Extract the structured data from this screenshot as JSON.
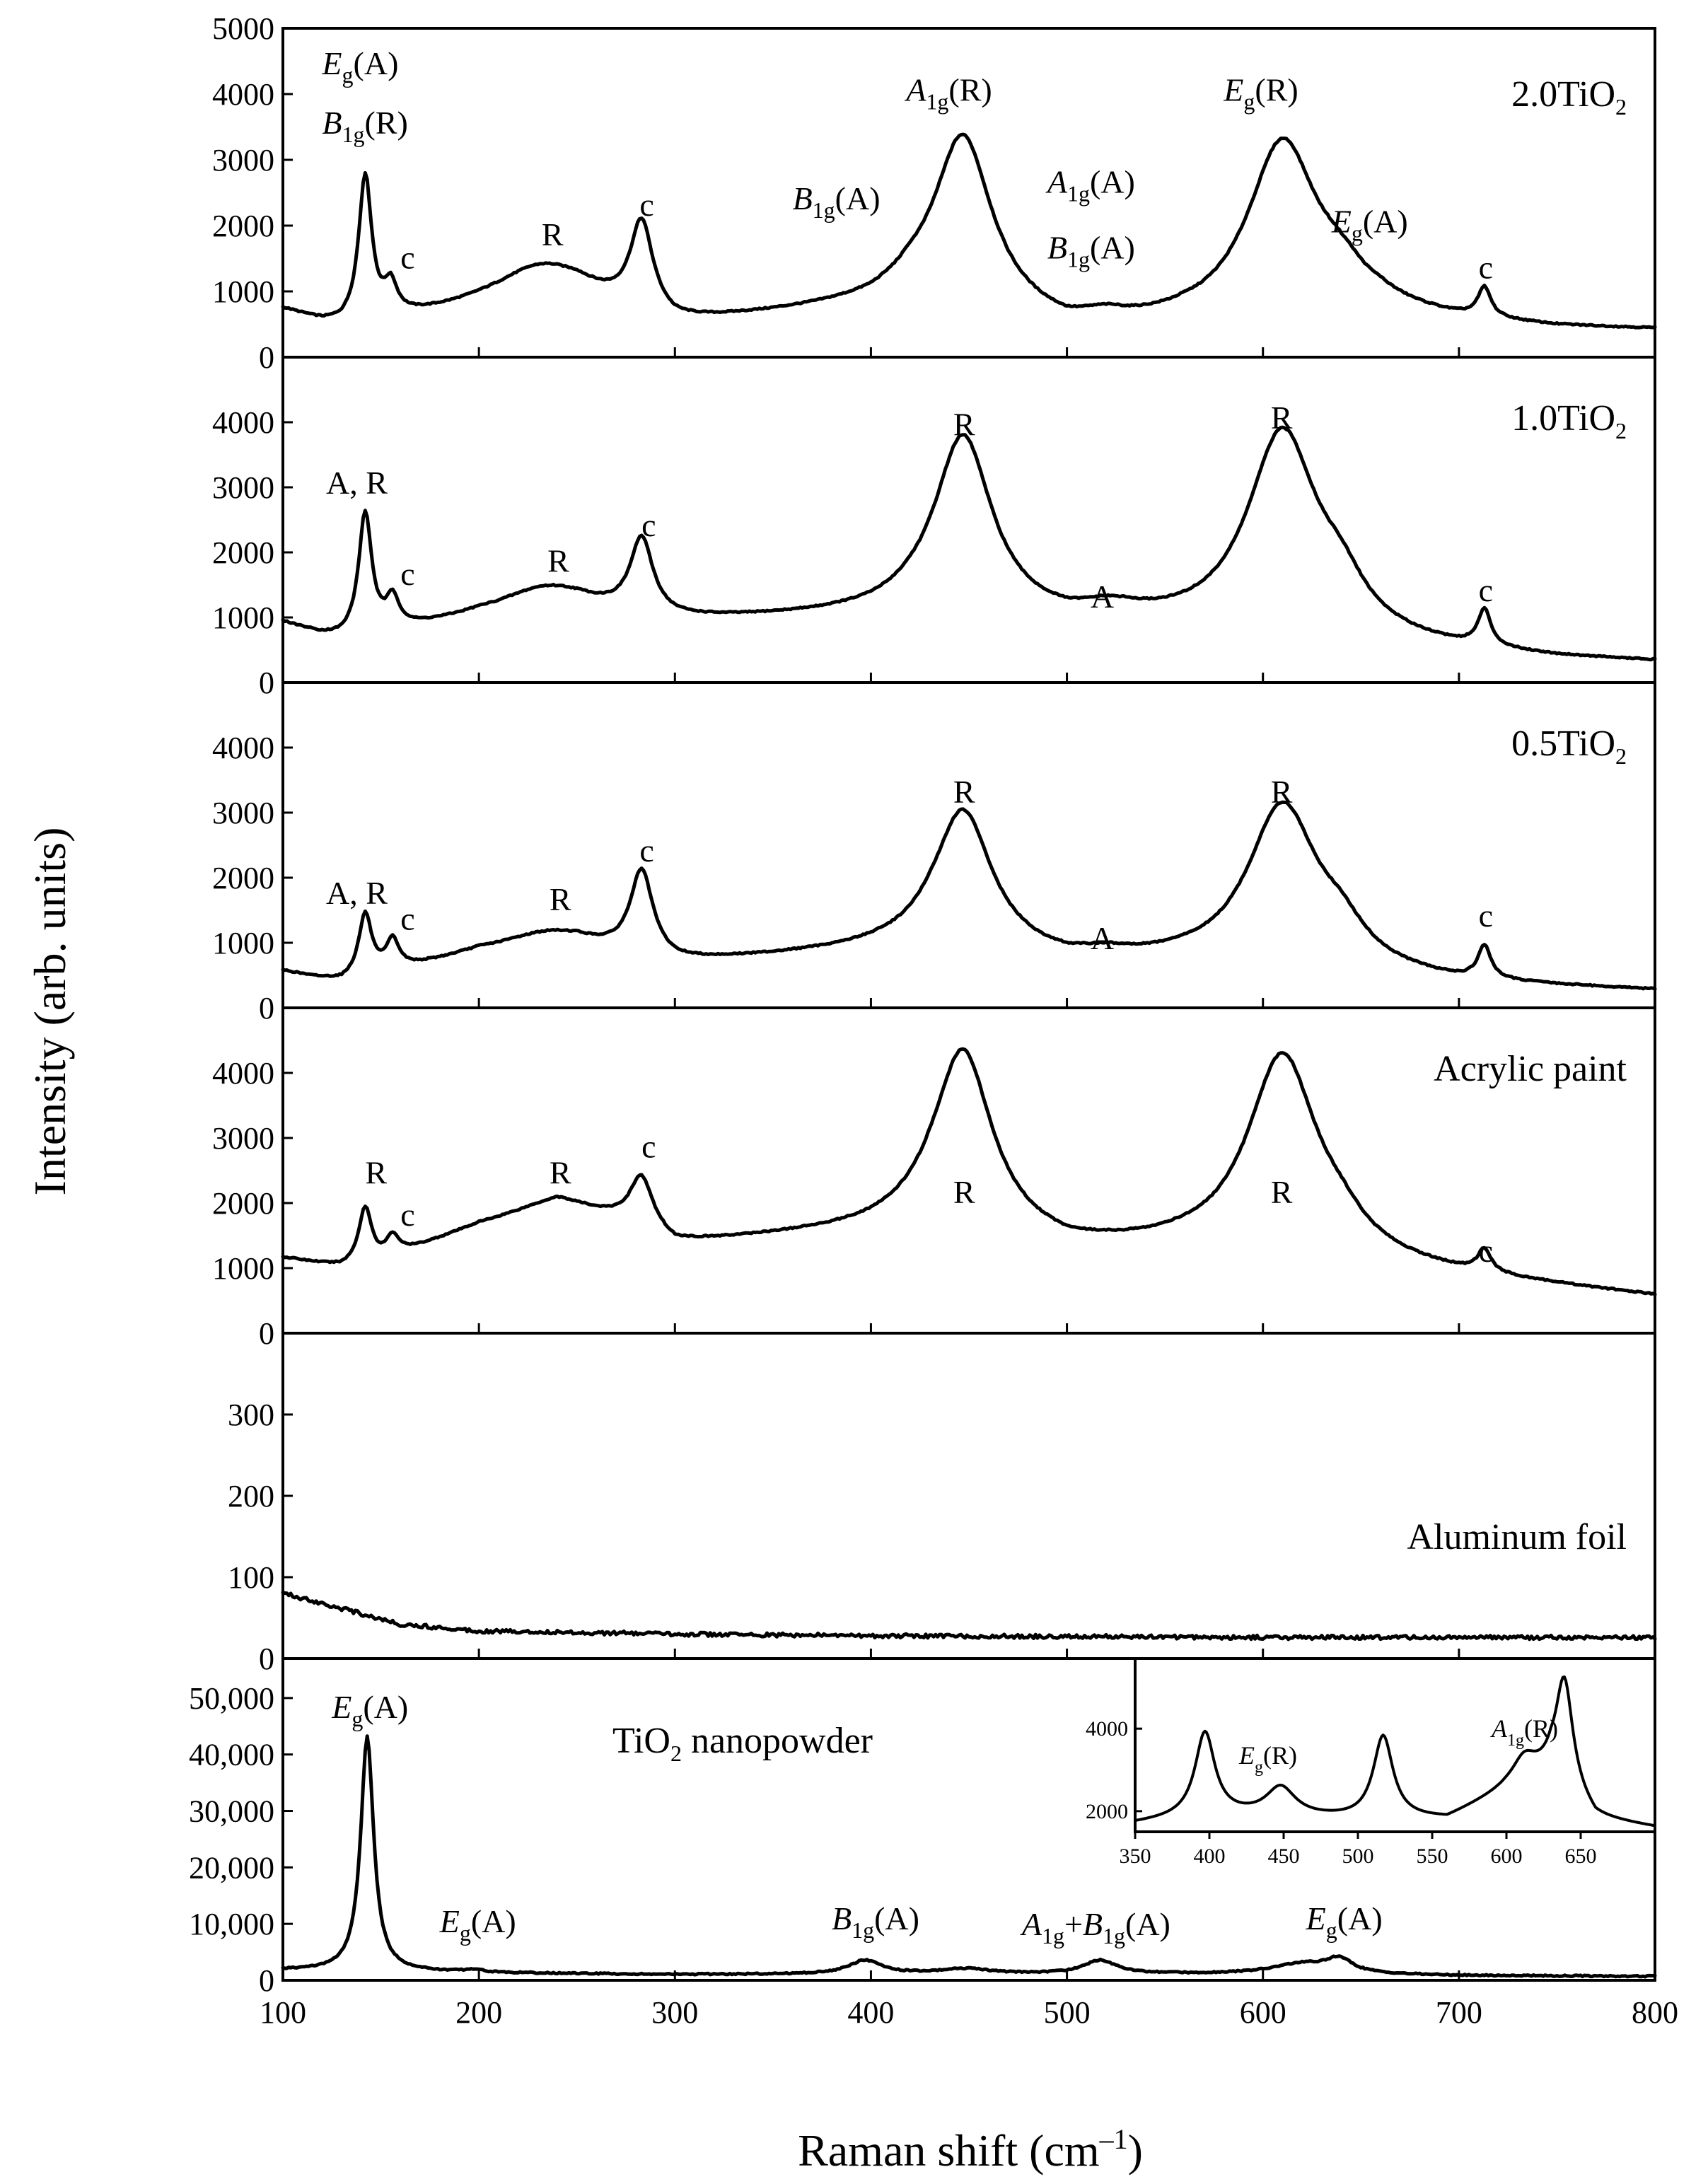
{
  "chart_data": {
    "type": "line",
    "xlabel": "Raman shift (cm⁻¹)",
    "xlabel_main": "Raman shift (cm",
    "xlabel_sup": "–1",
    "xlabel_close": ")",
    "ylabel": "Intensity (arb. units)",
    "xlim": [
      100,
      800
    ],
    "xticks": [
      100,
      200,
      300,
      400,
      500,
      600,
      700,
      800
    ],
    "panels": [
      {
        "id": "p1",
        "name": "2.0TiO2",
        "label": "2.0TiO",
        "label_sub": "2",
        "ylim": [
          0,
          5000
        ],
        "yticks": [
          0,
          1000,
          2000,
          3000,
          4000,
          5000
        ],
        "ytick_labels": [
          "0",
          "1000",
          "2000",
          "3000",
          "4000",
          "5000"
        ],
        "baseline": [
          [
            100,
            700
          ],
          [
            110,
            600
          ],
          [
            120,
            500
          ],
          [
            130,
            450
          ],
          [
            200,
            700
          ],
          [
            250,
            800
          ],
          [
            300,
            450
          ],
          [
            400,
            750
          ],
          [
            420,
            900
          ],
          [
            500,
            350
          ],
          [
            530,
            380
          ],
          [
            560,
            450
          ],
          [
            640,
            450
          ],
          [
            660,
            600
          ],
          [
            700,
            500
          ],
          [
            750,
            420
          ],
          [
            800,
            400
          ]
        ],
        "peaks": [
          [
            142,
            2200,
            4
          ],
          [
            155,
            450,
            4
          ],
          [
            232,
            600,
            30
          ],
          [
            283,
            1350,
            7
          ],
          [
            447,
            2600,
            18
          ],
          [
            520,
            120,
            15
          ],
          [
            610,
            2750,
            22
          ],
          [
            640,
            450,
            15
          ],
          [
            713,
            450,
            4
          ]
        ],
        "annotations": [
          {
            "main": "E",
            "sub": "g",
            "tail": "(A)",
            "italic": true,
            "x": 120,
            "y": 4300
          },
          {
            "main": "B",
            "sub": "1g",
            "tail": "(R)",
            "italic": true,
            "x": 120,
            "y": 3400
          },
          {
            "text": "c",
            "x": 160,
            "y": 1350
          },
          {
            "text": "R",
            "x": 232,
            "y": 1700
          },
          {
            "text": "c",
            "x": 282,
            "y": 2150
          },
          {
            "main": "B",
            "sub": "1g",
            "tail": "(A)",
            "italic": true,
            "x": 360,
            "y": 2250
          },
          {
            "main": "A",
            "sub": "1g",
            "tail": "(R)",
            "italic": true,
            "x": 418,
            "y": 3900
          },
          {
            "main": "A",
            "sub": "1g",
            "tail": "(A)",
            "italic": true,
            "x": 490,
            "y": 2500
          },
          {
            "main": "B",
            "sub": "1g",
            "tail": "(A)",
            "italic": true,
            "x": 490,
            "y": 1500
          },
          {
            "main": "E",
            "sub": "g",
            "tail": "(R)",
            "italic": true,
            "x": 580,
            "y": 3900
          },
          {
            "main": "E",
            "sub": "g",
            "tail": "(A)",
            "italic": true,
            "x": 635,
            "y": 1900
          },
          {
            "text": "c",
            "x": 710,
            "y": 1200
          }
        ]
      },
      {
        "id": "p2",
        "name": "1.0TiO2",
        "label": "1.0TiO",
        "label_sub": "2",
        "ylim": [
          0,
          5000
        ],
        "yticks": [
          0,
          1000,
          2000,
          3000,
          4000
        ],
        "ytick_labels": [
          "0",
          "1000",
          "2000",
          "3000",
          "4000"
        ],
        "baseline": [
          [
            100,
            900
          ],
          [
            110,
            800
          ],
          [
            120,
            700
          ],
          [
            130,
            650
          ],
          [
            200,
            950
          ],
          [
            250,
            1000
          ],
          [
            300,
            900
          ],
          [
            400,
            1000
          ],
          [
            420,
            1050
          ],
          [
            500,
            850
          ],
          [
            530,
            880
          ],
          [
            560,
            800
          ],
          [
            640,
            600
          ],
          [
            660,
            550
          ],
          [
            700,
            450
          ],
          [
            750,
            350
          ],
          [
            800,
            300
          ]
        ],
        "peaks": [
          [
            142,
            1850,
            4
          ],
          [
            156,
            450,
            4
          ],
          [
            235,
            450,
            30
          ],
          [
            283,
            1150,
            7
          ],
          [
            447,
            2750,
            18
          ],
          [
            520,
            120,
            15
          ],
          [
            610,
            3100,
            22
          ],
          [
            640,
            500,
            15
          ],
          [
            713,
            550,
            4
          ]
        ],
        "annotations": [
          {
            "text": "A, R",
            "x": 122,
            "y": 2900
          },
          {
            "text": "c",
            "x": 160,
            "y": 1500
          },
          {
            "text": "R",
            "x": 235,
            "y": 1700
          },
          {
            "text": "c",
            "x": 283,
            "y": 2250
          },
          {
            "text": "R",
            "x": 442,
            "y": 3800
          },
          {
            "text": "A",
            "x": 512,
            "y": 1150
          },
          {
            "text": "R",
            "x": 604,
            "y": 3900
          },
          {
            "text": "c",
            "x": 710,
            "y": 1250
          }
        ]
      },
      {
        "id": "p3",
        "name": "0.5TiO2",
        "label": "0.5TiO",
        "label_sub": "2",
        "ylim": [
          0,
          5000
        ],
        "yticks": [
          0,
          1000,
          2000,
          3000,
          4000
        ],
        "ytick_labels": [
          "0",
          "1000",
          "2000",
          "3000",
          "4000"
        ],
        "baseline": [
          [
            100,
            550
          ],
          [
            115,
            450
          ],
          [
            130,
            380
          ],
          [
            200,
            800
          ],
          [
            250,
            850
          ],
          [
            300,
            650
          ],
          [
            400,
            850
          ],
          [
            430,
            900
          ],
          [
            500,
            650
          ],
          [
            560,
            650
          ],
          [
            640,
            500
          ],
          [
            700,
            350
          ],
          [
            750,
            300
          ],
          [
            800,
            250
          ]
        ],
        "peaks": [
          [
            142,
            950,
            4
          ],
          [
            156,
            450,
            4
          ],
          [
            236,
            300,
            30
          ],
          [
            283,
            1300,
            7
          ],
          [
            447,
            2150,
            18
          ],
          [
            520,
            80,
            15
          ],
          [
            610,
            2500,
            22
          ],
          [
            640,
            400,
            15
          ],
          [
            713,
            500,
            4
          ]
        ],
        "annotations": [
          {
            "text": "A, R",
            "x": 122,
            "y": 1600
          },
          {
            "text": "c",
            "x": 160,
            "y": 1200
          },
          {
            "text": "R",
            "x": 236,
            "y": 1500
          },
          {
            "text": "c",
            "x": 282,
            "y": 2250
          },
          {
            "text": "R",
            "x": 442,
            "y": 3150
          },
          {
            "text": "A",
            "x": 512,
            "y": 900
          },
          {
            "text": "R",
            "x": 604,
            "y": 3150
          },
          {
            "text": "c",
            "x": 710,
            "y": 1250
          }
        ]
      },
      {
        "id": "p4",
        "name": "Acrylic paint",
        "label": "Acrylic paint",
        "label_sub": "",
        "ylim": [
          0,
          5000
        ],
        "yticks": [
          0,
          1000,
          2000,
          3000,
          4000
        ],
        "ytick_labels": [
          "0",
          "1000",
          "2000",
          "3000",
          "4000"
        ],
        "baseline": [
          [
            100,
            1150
          ],
          [
            120,
            1050
          ],
          [
            130,
            1000
          ],
          [
            150,
            1100
          ],
          [
            200,
            1650
          ],
          [
            240,
            1950
          ],
          [
            280,
            1650
          ],
          [
            300,
            1350
          ],
          [
            400,
            1550
          ],
          [
            430,
            1650
          ],
          [
            500,
            1250
          ],
          [
            560,
            1250
          ],
          [
            640,
            1050
          ],
          [
            700,
            850
          ],
          [
            750,
            700
          ],
          [
            800,
            550
          ]
        ],
        "peaks": [
          [
            142,
            850,
            4
          ],
          [
            156,
            300,
            4
          ],
          [
            240,
            100,
            25
          ],
          [
            283,
            750,
            7
          ],
          [
            447,
            2750,
            18
          ],
          [
            610,
            3100,
            22
          ],
          [
            640,
            250,
            15
          ],
          [
            713,
            350,
            4
          ]
        ],
        "annotations": [
          {
            "text": "R",
            "x": 142,
            "y": 2300
          },
          {
            "text": "c",
            "x": 160,
            "y": 1650
          },
          {
            "text": "R",
            "x": 236,
            "y": 2300
          },
          {
            "text": "c",
            "x": 283,
            "y": 2700
          },
          {
            "text": "R",
            "x": 442,
            "y": 2000
          },
          {
            "text": "R",
            "x": 604,
            "y": 2000
          },
          {
            "text": "c",
            "x": 710,
            "y": 1100
          }
        ]
      },
      {
        "id": "p5",
        "name": "Aluminum foil",
        "label": "Aluminum foil",
        "label_sub": "",
        "ylim": [
          0,
          400
        ],
        "yticks": [
          0,
          100,
          200,
          300
        ],
        "ytick_labels": [
          "0",
          "100",
          "200",
          "300"
        ],
        "baseline": [
          [
            100,
            80
          ],
          [
            120,
            68
          ],
          [
            140,
            55
          ],
          [
            160,
            42
          ],
          [
            200,
            34
          ],
          [
            300,
            30
          ],
          [
            400,
            28
          ],
          [
            600,
            26
          ],
          [
            800,
            26
          ]
        ],
        "peaks": [],
        "annotations": []
      },
      {
        "id": "p6",
        "name": "TiO2 nanopowder",
        "label": "TiO",
        "label_sub": "2",
        "label_tail": " nanopowder",
        "ylim": [
          0,
          57000
        ],
        "yticks": [
          0,
          10000,
          20000,
          30000,
          40000,
          50000
        ],
        "ytick_labels": [
          "0",
          "10,000",
          "20,000",
          "30,000",
          "40,000",
          "50,000"
        ],
        "baseline": [
          [
            100,
            1800
          ],
          [
            150,
            1600
          ],
          [
            200,
            1300
          ],
          [
            300,
            1000
          ],
          [
            400,
            1100
          ],
          [
            500,
            1100
          ],
          [
            600,
            1100
          ],
          [
            650,
            1000
          ],
          [
            700,
            800
          ],
          [
            800,
            700
          ]
        ],
        "peaks": [
          [
            143,
            41500,
            4
          ],
          [
            197,
            500,
            6
          ],
          [
            397,
            2400,
            10
          ],
          [
            448,
            900,
            15
          ],
          [
            517,
            2400,
            10
          ],
          [
            620,
            1800,
            18
          ],
          [
            639,
            2400,
            8
          ]
        ],
        "annotations": [
          {
            "main": "E",
            "sub": "g",
            "tail": "(A)",
            "italic": true,
            "x": 125,
            "y": 46500
          },
          {
            "main": "E",
            "sub": "g",
            "tail": "(A)",
            "italic": true,
            "x": 180,
            "y": 8500
          },
          {
            "main": "B",
            "sub": "1g",
            "tail": "(A)",
            "italic": true,
            "x": 380,
            "y": 9000
          },
          {
            "main": "A",
            "sub": "1g",
            "tail": "+",
            "main2": "B",
            "sub2": "1g",
            "tail2": "(A)",
            "italic": true,
            "x": 477,
            "y": 8000
          },
          {
            "main": "E",
            "sub": "g",
            "tail": "(A)",
            "italic": true,
            "x": 622,
            "y": 9000
          }
        ],
        "inset": {
          "xlim": [
            350,
            700
          ],
          "ylim": [
            1500,
            5700
          ],
          "xticks": [
            350,
            400,
            450,
            500,
            550,
            600,
            650
          ],
          "yticks": [
            2000,
            4000
          ],
          "ytick_labels": [
            "2000",
            "4000"
          ],
          "baseline": [
            [
              350,
              1700
            ],
            [
              400,
              1900
            ],
            [
              500,
              1800
            ],
            [
              560,
              1800
            ],
            [
              600,
              2500
            ],
            [
              630,
              2900
            ],
            [
              660,
              1800
            ],
            [
              700,
              1600
            ]
          ],
          "peaks": [
            [
              397,
              2000,
              8
            ],
            [
              448,
              700,
              12
            ],
            [
              517,
              2000,
              8
            ],
            [
              612,
              600,
              10
            ],
            [
              639,
              2600,
              7
            ]
          ],
          "annotations": [
            {
              "main": "E",
              "sub": "g",
              "tail": "(R)",
              "italic": true,
              "x": 420,
              "y": 3150
            },
            {
              "main": "A",
              "sub": "1g",
              "tail": "(R)",
              "italic": true,
              "x": 590,
              "y": 3800
            }
          ]
        }
      }
    ]
  }
}
